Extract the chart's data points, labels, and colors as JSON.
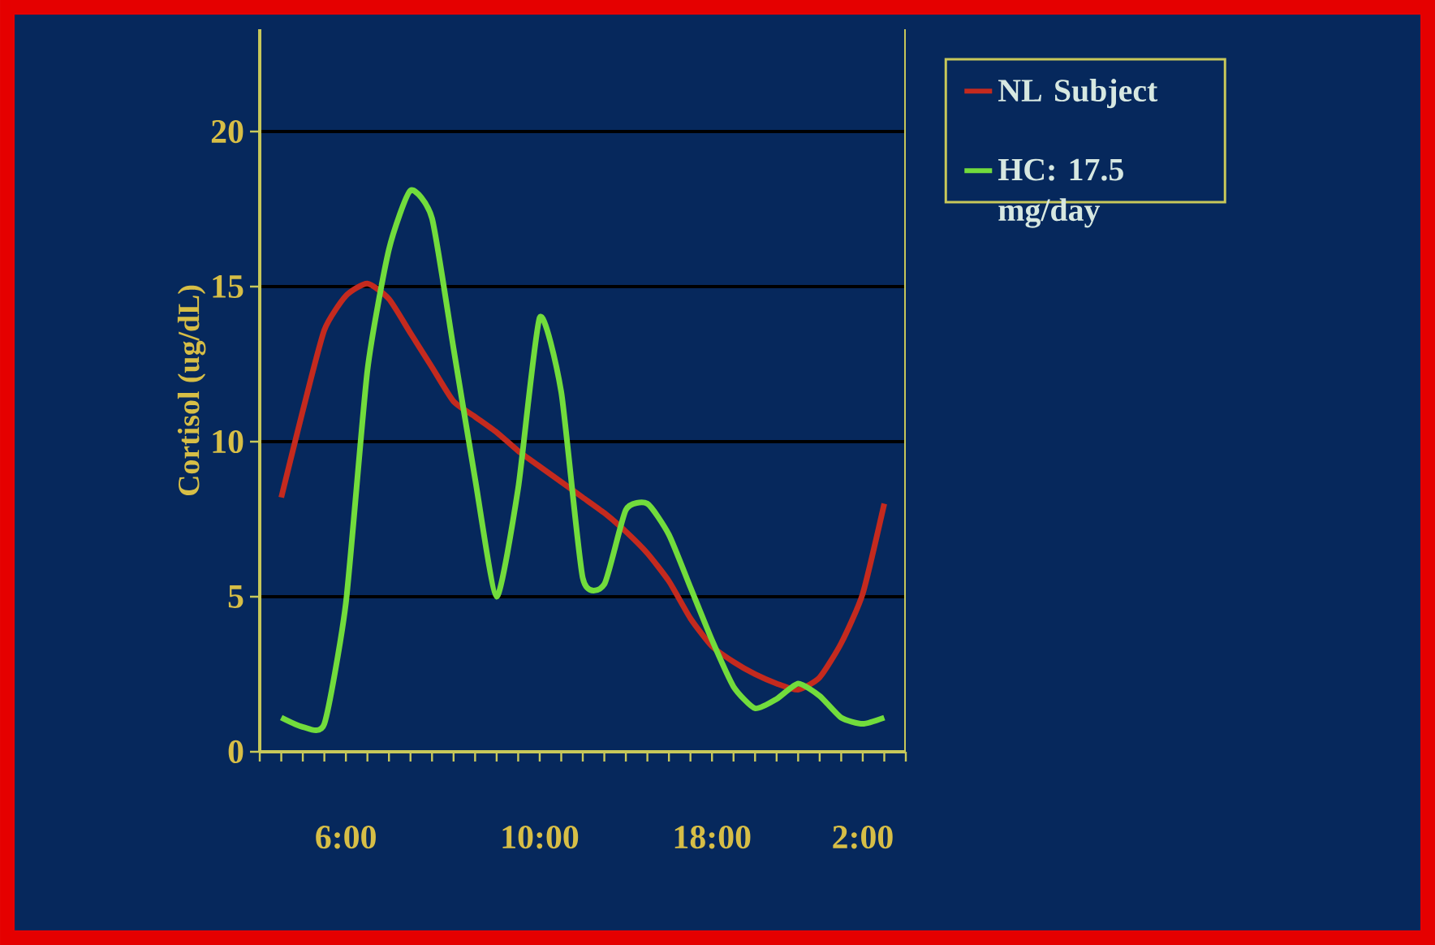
{
  "chart_data": {
    "type": "line",
    "ylabel": "Cortisol (ug/dL)",
    "categories": [
      null,
      null,
      null,
      null,
      "6:00",
      null,
      null,
      null,
      null,
      null,
      null,
      null,
      null,
      "10:00",
      null,
      null,
      null,
      null,
      null,
      null,
      null,
      "18:00",
      null,
      null,
      null,
      null,
      null,
      null,
      "2:00",
      null,
      null
    ],
    "ylim": [
      0,
      23.3
    ],
    "yticks": [
      0,
      5,
      10,
      15,
      20
    ],
    "grid": "y",
    "legend": "right",
    "marker": "none",
    "line_style": "solid",
    "series": [
      {
        "name": "NL Subject",
        "color": "#c42a1e",
        "values": [
          null,
          8.2,
          11.0,
          13.6,
          14.7,
          15.1,
          14.6,
          13.5,
          12.4,
          11.3,
          10.8,
          10.3,
          9.7,
          9.2,
          8.7,
          8.2,
          7.7,
          7.1,
          6.4,
          5.5,
          4.3,
          3.4,
          2.9,
          2.5,
          2.2,
          2.0,
          2.4,
          3.5,
          5.1,
          8.0,
          null
        ]
      },
      {
        "name": "HC: 17.5 mg/day",
        "color": "#72dc3c",
        "values": [
          null,
          1.1,
          0.8,
          0.9,
          4.8,
          12.3,
          16.2,
          18.1,
          17.2,
          13.0,
          8.8,
          5.0,
          8.5,
          14.0,
          11.6,
          5.6,
          5.4,
          7.8,
          8.0,
          7.0,
          5.3,
          3.6,
          2.1,
          1.4,
          1.7,
          2.2,
          1.8,
          1.1,
          0.9,
          1.1,
          null
        ]
      }
    ]
  }
}
